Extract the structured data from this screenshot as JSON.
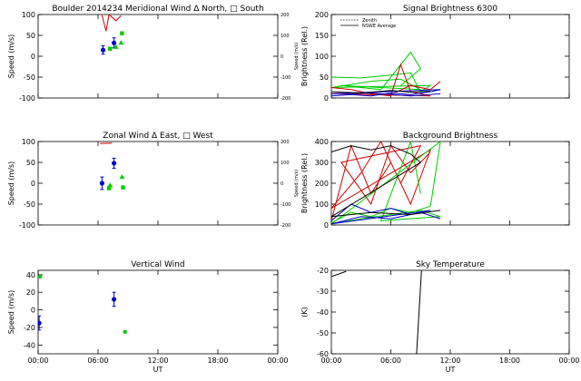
{
  "chart_data": [
    {
      "id": "meridional",
      "type": "scatter",
      "title": "Boulder   2014234     Meridional Wind   Δ North, □ South",
      "ylabel": "Speed (m/s)",
      "ylabel_right": "Speed (m/s)",
      "xlabel": "",
      "xlim": [
        0,
        24
      ],
      "ylim": [
        -100,
        100
      ],
      "ylim_right": [
        -200,
        200
      ],
      "yticks": [
        -100,
        -50,
        0,
        50,
        100
      ],
      "yticks_right": [
        -200,
        -100,
        0,
        100,
        200
      ],
      "series": [
        {
          "color": "#0000cc",
          "marker": "circle",
          "points": [
            {
              "x": 6.5,
              "y": 15,
              "err": 10
            },
            {
              "x": 7.6,
              "y": 32,
              "err": 12
            }
          ]
        },
        {
          "color": "#00cc00",
          "marker": "square",
          "points": [
            {
              "x": 7.2,
              "y": 18
            },
            {
              "x": 8.4,
              "y": 55
            }
          ]
        },
        {
          "color": "#00cc00",
          "marker": "triangle",
          "points": [
            {
              "x": 7.8,
              "y": 22
            },
            {
              "x": 8.3,
              "y": 32
            }
          ]
        },
        {
          "color": "#cc0000",
          "marker": "line",
          "points": [
            {
              "x": 6.4,
              "y": 98
            },
            {
              "x": 6.8,
              "y": 60
            },
            {
              "x": 7.1,
              "y": 100
            },
            {
              "x": 7.8,
              "y": 85
            },
            {
              "x": 8.3,
              "y": 97
            }
          ]
        }
      ]
    },
    {
      "id": "zonal",
      "type": "scatter",
      "title": "Zonal Wind       Δ East, □ West",
      "ylabel": "Speed (m/s)",
      "ylabel_right": "Speed (m/s)",
      "xlabel": "",
      "xlim": [
        0,
        24
      ],
      "ylim": [
        -100,
        100
      ],
      "ylim_right": [
        -200,
        200
      ],
      "yticks": [
        -100,
        -50,
        0,
        50,
        100
      ],
      "yticks_right": [
        -200,
        -100,
        0,
        100,
        200
      ],
      "series": [
        {
          "color": "#0000cc",
          "marker": "circle",
          "points": [
            {
              "x": 6.4,
              "y": 0,
              "err": 15
            },
            {
              "x": 7.6,
              "y": 48,
              "err": 12
            }
          ]
        },
        {
          "color": "#00cc00",
          "marker": "square",
          "points": [
            {
              "x": 7.1,
              "y": -12
            },
            {
              "x": 8.5,
              "y": -10
            }
          ]
        },
        {
          "color": "#00cc00",
          "marker": "triangle",
          "points": [
            {
              "x": 7.2,
              "y": -5
            },
            {
              "x": 8.4,
              "y": 15
            }
          ]
        },
        {
          "color": "#cc0000",
          "marker": "line",
          "points": [
            {
              "x": 6.2,
              "y": 95
            },
            {
              "x": 7.4,
              "y": 96
            }
          ]
        }
      ]
    },
    {
      "id": "vertical",
      "type": "scatter",
      "title": "Vertical Wind",
      "ylabel": "Speed (m/s)",
      "xlabel": "UT",
      "xlim": [
        0,
        24
      ],
      "ylim": [
        -50,
        45
      ],
      "yticks": [
        -40,
        -20,
        0,
        20,
        40
      ],
      "xticks": [
        "00:00",
        "06:00",
        "12:00",
        "18:00",
        "00:00"
      ],
      "series": [
        {
          "color": "#0000cc",
          "marker": "circle",
          "points": [
            {
              "x": 0.1,
              "y": -15,
              "err": 8
            },
            {
              "x": 7.6,
              "y": 12,
              "err": 8
            }
          ]
        },
        {
          "color": "#00cc00",
          "marker": "dot",
          "points": [
            {
              "x": 0.2,
              "y": 38
            },
            {
              "x": 8.7,
              "y": -25
            }
          ]
        }
      ]
    },
    {
      "id": "signal",
      "type": "line",
      "title": "Signal Brightness       6300",
      "ylabel": "Brightness (Rel.)",
      "xlabel": "",
      "xlim": [
        0,
        24
      ],
      "ylim": [
        0,
        200
      ],
      "yticks": [
        0,
        50,
        100,
        150,
        200
      ],
      "legend": [
        "Zenith",
        "NSWE Average"
      ],
      "legend_position": "top-left",
      "series": [
        {
          "color": "#00cc00",
          "points": [
            [
              0,
              50
            ],
            [
              3,
              48
            ],
            [
              6,
              55
            ],
            [
              8,
              60
            ],
            [
              9,
              15
            ],
            [
              10,
              30
            ],
            [
              0,
              25
            ],
            [
              4,
              40
            ],
            [
              7,
              45
            ],
            [
              9,
              20
            ],
            [
              1,
              30
            ],
            [
              5,
              20
            ],
            [
              8,
              110
            ],
            [
              9,
              70
            ],
            [
              7,
              30
            ]
          ]
        },
        {
          "color": "#cc0000",
          "points": [
            [
              0,
              25
            ],
            [
              2,
              20
            ],
            [
              4,
              10
            ],
            [
              6,
              5
            ],
            [
              7,
              80
            ],
            [
              8,
              15
            ],
            [
              10,
              5
            ],
            [
              0,
              10
            ],
            [
              3,
              12
            ],
            [
              6,
              8
            ],
            [
              8,
              30
            ],
            [
              10,
              20
            ],
            [
              11,
              40
            ]
          ]
        },
        {
          "color": "#0000cc",
          "points": [
            [
              0,
              5
            ],
            [
              2,
              8
            ],
            [
              4,
              5
            ],
            [
              6,
              12
            ],
            [
              8,
              8
            ],
            [
              10,
              15
            ],
            [
              11,
              20
            ],
            [
              0,
              10
            ],
            [
              4,
              12
            ],
            [
              8,
              5
            ],
            [
              11,
              10
            ]
          ]
        },
        {
          "color": "#000000",
          "points": [
            [
              0,
              15
            ],
            [
              3,
              12
            ],
            [
              6,
              18
            ],
            [
              8,
              14
            ],
            [
              10,
              16
            ]
          ]
        }
      ]
    },
    {
      "id": "background",
      "type": "line",
      "title": "Background Brightness",
      "ylabel": "Brightness (Rel.)",
      "xlabel": "",
      "xlim": [
        0,
        24
      ],
      "ylim": [
        0,
        400
      ],
      "yticks": [
        0,
        100,
        200,
        300,
        400
      ],
      "series": [
        {
          "color": "#cc0000",
          "points": [
            [
              0,
              20
            ],
            [
              2,
              380
            ],
            [
              4,
              150
            ],
            [
              6,
              300
            ],
            [
              8,
              100
            ],
            [
              10,
              360
            ],
            [
              0,
              80
            ],
            [
              3,
              250
            ],
            [
              5,
              400
            ],
            [
              7,
              200
            ],
            [
              9,
              380
            ],
            [
              1,
              300
            ],
            [
              4,
              100
            ],
            [
              6,
              380
            ],
            [
              8,
              250
            ],
            [
              10,
              350
            ]
          ]
        },
        {
          "color": "#00cc00",
          "points": [
            [
              0,
              10
            ],
            [
              2,
              60
            ],
            [
              4,
              40
            ],
            [
              6,
              80
            ],
            [
              8,
              60
            ],
            [
              10,
              90
            ],
            [
              11,
              400
            ],
            [
              0,
              5
            ],
            [
              3,
              30
            ],
            [
              6,
              50
            ],
            [
              9,
              70
            ],
            [
              11,
              40
            ],
            [
              5,
              20
            ],
            [
              8,
              400
            ],
            [
              9,
              150
            ]
          ]
        },
        {
          "color": "#0000cc",
          "points": [
            [
              0,
              20
            ],
            [
              2,
              100
            ],
            [
              4,
              60
            ],
            [
              6,
              80
            ],
            [
              8,
              50
            ],
            [
              10,
              70
            ],
            [
              0,
              5
            ],
            [
              3,
              40
            ],
            [
              6,
              30
            ],
            [
              9,
              60
            ],
            [
              11,
              30
            ]
          ]
        },
        {
          "color": "#000000",
          "points": [
            [
              0,
              350
            ],
            [
              2,
              380
            ],
            [
              4,
              360
            ],
            [
              6,
              380
            ],
            [
              8,
              340
            ],
            [
              9,
              300
            ],
            [
              0,
              40
            ],
            [
              4,
              60
            ],
            [
              8,
              50
            ],
            [
              11,
              70
            ]
          ]
        }
      ]
    },
    {
      "id": "skytemp",
      "type": "line",
      "title": "Sky Temperature",
      "ylabel": "(K)",
      "xlabel": "UT",
      "xlim": [
        0,
        24
      ],
      "ylim": [
        -60,
        -20
      ],
      "yticks": [
        -60,
        -50,
        -40,
        -30,
        -20
      ],
      "xticks": [
        "00:00",
        "06:00",
        "12:00",
        "18:00",
        "00:00"
      ],
      "series": [
        {
          "color": "#000000",
          "points": [
            [
              0,
              -23
            ],
            [
              1.5,
              -20.5
            ]
          ]
        },
        {
          "color": "#000000",
          "points": [
            [
              8.6,
              -60
            ],
            [
              9.1,
              -20
            ]
          ]
        }
      ]
    }
  ]
}
